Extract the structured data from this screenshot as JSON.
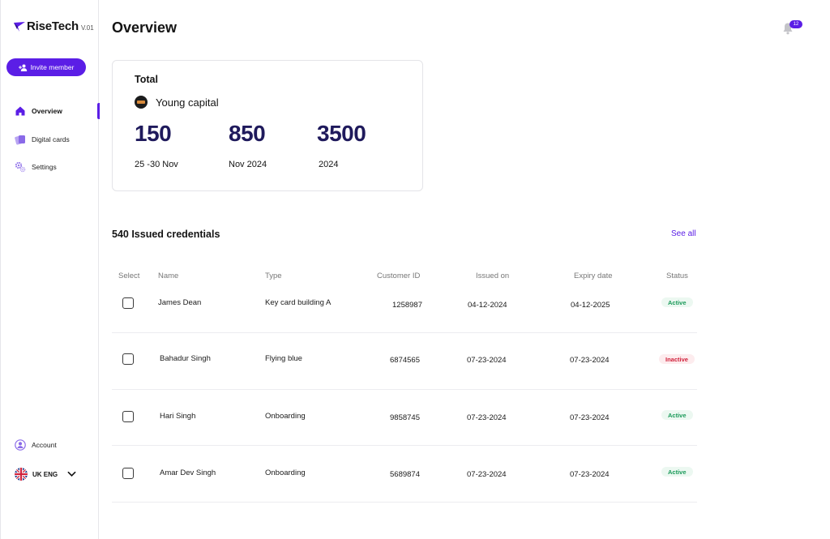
{
  "app": {
    "name": "RiseTech",
    "version": "V.01"
  },
  "sidebar": {
    "invite_label": "Invite member",
    "items": [
      {
        "label": "Overview",
        "icon": "home-icon",
        "active": true
      },
      {
        "label": "Digital cards",
        "icon": "cards-icon",
        "active": false
      },
      {
        "label": "Settings",
        "icon": "gear-icon",
        "active": false
      }
    ],
    "account_label": "Account",
    "language_label": "UK ENG"
  },
  "header": {
    "title": "Overview",
    "notification_count": "12"
  },
  "total": {
    "title": "Total",
    "company": "Young capital",
    "stats": [
      {
        "value": "150",
        "label": "25 -30 Nov"
      },
      {
        "value": "850",
        "label": "Nov 2024"
      },
      {
        "value": "3500",
        "label": "2024"
      }
    ]
  },
  "credentials": {
    "title": "540 Issued credentials",
    "see_all": "See all",
    "columns": [
      "Select",
      "Name",
      "Type",
      "Customer ID",
      "Issued on",
      "Expiry date",
      "Status"
    ],
    "rows": [
      {
        "name": "James Dean",
        "type": "Key card building A",
        "customer_id": "1258987",
        "issued": "04-12-2024",
        "expiry": "04-12-2025",
        "status": "Active"
      },
      {
        "name": "Bahadur Singh",
        "type": "Flying blue",
        "customer_id": "6874565",
        "issued": "07-23-2024",
        "expiry": "07-23-2024",
        "status": "Inactive"
      },
      {
        "name": "Hari Singh",
        "type": "Onboarding",
        "customer_id": "9858745",
        "issued": "07-23-2024",
        "expiry": "07-23-2024",
        "status": "Active"
      },
      {
        "name": "Amar Dev Singh",
        "type": "Onboarding",
        "customer_id": "5689874",
        "issued": "07-23-2024",
        "expiry": "07-23-2024",
        "status": "Active"
      }
    ]
  },
  "colors": {
    "accent": "#5b1ee6",
    "stat": "#1f1a5c",
    "active": "#1b9a5a",
    "inactive": "#d0213b"
  }
}
